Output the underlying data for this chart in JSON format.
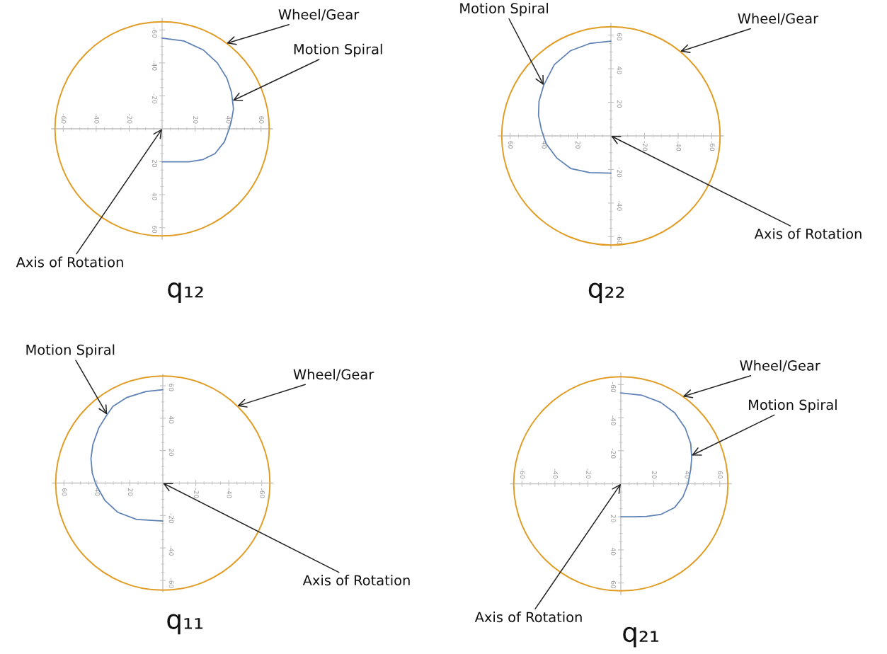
{
  "chart_data": [
    {
      "type": "line",
      "title": "q₁₂",
      "xlim": [
        -67,
        67
      ],
      "ylim": [
        67,
        -67
      ],
      "xticks": [
        -60,
        {
          "value": -55,
          "label": null
        },
        {
          "value": -50,
          "label": null
        },
        {
          "value": -45,
          "label": null
        },
        -40,
        {
          "value": -35,
          "label": null
        },
        {
          "value": -30,
          "label": null
        },
        {
          "value": -25,
          "label": null
        },
        -20,
        {
          "value": -15,
          "label": null
        },
        {
          "value": -10,
          "label": null
        },
        {
          "value": -5,
          "label": null
        },
        {
          "value": 5,
          "label": null
        },
        {
          "value": 10,
          "label": null
        },
        {
          "value": 15,
          "label": null
        },
        20,
        {
          "value": 25,
          "label": null
        },
        {
          "value": 30,
          "label": null
        },
        {
          "value": 35,
          "label": null
        },
        40,
        {
          "value": 45,
          "label": null
        },
        {
          "value": 50,
          "label": null
        },
        {
          "value": 55,
          "label": null
        },
        60
      ],
      "yticks": [
        -60,
        {
          "value": -55,
          "label": null
        },
        {
          "value": -50,
          "label": null
        },
        {
          "value": -45,
          "label": null
        },
        -40,
        {
          "value": -35,
          "label": null
        },
        {
          "value": -30,
          "label": null
        },
        {
          "value": -25,
          "label": null
        },
        -20,
        {
          "value": -15,
          "label": null
        },
        {
          "value": -10,
          "label": null
        },
        {
          "value": -5,
          "label": null
        },
        {
          "value": 5,
          "label": null
        },
        {
          "value": 10,
          "label": null
        },
        {
          "value": 15,
          "label": null
        },
        20,
        {
          "value": 25,
          "label": null
        },
        {
          "value": 30,
          "label": null
        },
        {
          "value": 35,
          "label": null
        },
        40,
        {
          "value": 45,
          "label": null
        },
        {
          "value": 50,
          "label": null
        },
        {
          "value": 55,
          "label": null
        },
        60
      ],
      "series": [
        {
          "color": "#5e81b5",
          "x": [
            0,
            13.2,
            24.9,
            33.5,
            39.3,
            42.1,
            43.3,
            42.1,
            40.7,
            37.8,
            32.1,
            24.9,
            16.3,
            7.7,
            0
          ],
          "values": [
            -55,
            -53.3,
            -47.9,
            -40,
            -30.7,
            -22.1,
            -12.1,
            -5,
            0,
            7.9,
            15,
            18.6,
            20,
            20,
            20
          ]
        }
      ],
      "annotations": [
        "Wheel/Gear",
        {
          "text": "Motion Spiral",
          "x": 42.8,
          "y": -17.1
        },
        "Axis of Rotation"
      ]
    },
    {
      "type": "line",
      "title": "q₂₂",
      "xlim": [
        67,
        -67
      ],
      "ylim": [
        -67,
        67
      ],
      "xticks": [
        -60,
        {
          "value": -55,
          "label": null
        },
        {
          "value": -50,
          "label": null
        },
        {
          "value": -45,
          "label": null
        },
        -40,
        {
          "value": -35,
          "label": null
        },
        {
          "value": -30,
          "label": null
        },
        {
          "value": -25,
          "label": null
        },
        -20,
        {
          "value": -15,
          "label": null
        },
        {
          "value": -10,
          "label": null
        },
        {
          "value": -5,
          "label": null
        },
        {
          "value": 5,
          "label": null
        },
        {
          "value": 10,
          "label": null
        },
        {
          "value": 15,
          "label": null
        },
        20,
        {
          "value": 25,
          "label": null
        },
        {
          "value": 30,
          "label": null
        },
        {
          "value": 35,
          "label": null
        },
        40,
        {
          "value": 45,
          "label": null
        },
        {
          "value": 50,
          "label": null
        },
        {
          "value": 55,
          "label": null
        },
        60
      ],
      "yticks": [
        -60,
        {
          "value": -55,
          "label": null
        },
        {
          "value": -50,
          "label": null
        },
        {
          "value": -45,
          "label": null
        },
        -40,
        {
          "value": -35,
          "label": null
        },
        {
          "value": -30,
          "label": null
        },
        {
          "value": -25,
          "label": null
        },
        -20,
        {
          "value": -15,
          "label": null
        },
        {
          "value": -10,
          "label": null
        },
        {
          "value": -5,
          "label": null
        },
        {
          "value": 5,
          "label": null
        },
        {
          "value": 10,
          "label": null
        },
        {
          "value": 15,
          "label": null
        },
        20,
        {
          "value": 25,
          "label": null
        },
        {
          "value": 30,
          "label": null
        },
        {
          "value": 35,
          "label": null
        },
        40,
        {
          "value": 45,
          "label": null
        },
        {
          "value": 50,
          "label": null
        },
        {
          "value": 55,
          "label": null
        },
        60
      ],
      "series": [
        {
          "color": "#5e81b5",
          "x": [
            0,
            12.6,
            23.9,
            33.7,
            40,
            42.8,
            43.1,
            41.4,
            38.6,
            32.3,
            23.9,
            12.6,
            0
          ],
          "values": [
            56.4,
            55,
            50.8,
            42.4,
            30.2,
            20.6,
            12.2,
            3.8,
            -4.6,
            -13.1,
            -19.4,
            -21.9,
            -22.2
          ]
        }
      ],
      "annotations": [
        {
          "text": "Motion Spiral",
          "x": 40,
          "y": 30.2
        },
        "Wheel/Gear",
        "Axis of Rotation"
      ]
    },
    {
      "type": "line",
      "title": "q₁₁",
      "xlim": [
        67,
        -67
      ],
      "ylim": [
        -67,
        67
      ],
      "xticks": [
        -60,
        {
          "value": -55,
          "label": null
        },
        {
          "value": -50,
          "label": null
        },
        {
          "value": -45,
          "label": null
        },
        -40,
        {
          "value": -35,
          "label": null
        },
        {
          "value": -30,
          "label": null
        },
        {
          "value": -25,
          "label": null
        },
        -20,
        {
          "value": -15,
          "label": null
        },
        {
          "value": -10,
          "label": null
        },
        {
          "value": -5,
          "label": null
        },
        {
          "value": 5,
          "label": null
        },
        {
          "value": 10,
          "label": null
        },
        {
          "value": 15,
          "label": null
        },
        20,
        {
          "value": 25,
          "label": null
        },
        {
          "value": 30,
          "label": null
        },
        {
          "value": 35,
          "label": null
        },
        40,
        {
          "value": 45,
          "label": null
        },
        {
          "value": 50,
          "label": null
        },
        {
          "value": 55,
          "label": null
        },
        60
      ],
      "yticks": [
        -60,
        {
          "value": -55,
          "label": null
        },
        {
          "value": -50,
          "label": null
        },
        {
          "value": -45,
          "label": null
        },
        -40,
        {
          "value": -35,
          "label": null
        },
        {
          "value": -30,
          "label": null
        },
        {
          "value": -25,
          "label": null
        },
        -20,
        {
          "value": -15,
          "label": null
        },
        {
          "value": -10,
          "label": null
        },
        {
          "value": -5,
          "label": null
        },
        {
          "value": 5,
          "label": null
        },
        {
          "value": 10,
          "label": null
        },
        {
          "value": 15,
          "label": null
        },
        20,
        {
          "value": 25,
          "label": null
        },
        {
          "value": 30,
          "label": null
        },
        {
          "value": 35,
          "label": null
        },
        40,
        {
          "value": 45,
          "label": null
        },
        {
          "value": 50,
          "label": null
        },
        {
          "value": 55,
          "label": null
        },
        60
      ],
      "series": [
        {
          "color": "#5e81b5",
          "x": [
            0,
            10.2,
            21.6,
            30.2,
            33.8,
            38.8,
            42.4,
            43.6,
            42.8,
            40.5,
            35.2,
            27.4,
            15.9,
            0
          ],
          "values": [
            57.6,
            56.5,
            52.9,
            47.4,
            42.2,
            34.1,
            23.9,
            15.1,
            6.2,
            -1.1,
            -10.6,
            -18,
            -22.4,
            -23.4
          ]
        }
      ],
      "annotations": [
        {
          "text": "Motion Spiral",
          "x": 33.8,
          "y": 42.2
        },
        "Wheel/Gear",
        "Axis of Rotation"
      ]
    },
    {
      "type": "line",
      "title": "q₂₁",
      "xlim": [
        -67,
        67
      ],
      "ylim": [
        67,
        -67
      ],
      "xticks": [
        -60,
        {
          "value": -55,
          "label": null
        },
        {
          "value": -50,
          "label": null
        },
        {
          "value": -45,
          "label": null
        },
        -40,
        {
          "value": -35,
          "label": null
        },
        {
          "value": -30,
          "label": null
        },
        {
          "value": -25,
          "label": null
        },
        -20,
        {
          "value": -15,
          "label": null
        },
        {
          "value": -10,
          "label": null
        },
        {
          "value": -5,
          "label": null
        },
        {
          "value": 5,
          "label": null
        },
        {
          "value": 10,
          "label": null
        },
        {
          "value": 15,
          "label": null
        },
        20,
        {
          "value": 25,
          "label": null
        },
        {
          "value": 30,
          "label": null
        },
        {
          "value": 35,
          "label": null
        },
        40,
        {
          "value": 45,
          "label": null
        },
        {
          "value": 50,
          "label": null
        },
        {
          "value": 55,
          "label": null
        },
        60
      ],
      "yticks": [
        -60,
        {
          "value": -55,
          "label": null
        },
        {
          "value": -50,
          "label": null
        },
        {
          "value": -45,
          "label": null
        },
        -40,
        {
          "value": -35,
          "label": null
        },
        {
          "value": -30,
          "label": null
        },
        {
          "value": -25,
          "label": null
        },
        -20,
        {
          "value": -15,
          "label": null
        },
        {
          "value": -10,
          "label": null
        },
        {
          "value": -5,
          "label": null
        },
        {
          "value": 5,
          "label": null
        },
        {
          "value": 10,
          "label": null
        },
        {
          "value": 15,
          "label": null
        },
        20,
        {
          "value": 25,
          "label": null
        },
        {
          "value": 30,
          "label": null
        },
        {
          "value": 35,
          "label": null
        },
        40,
        {
          "value": 45,
          "label": null
        },
        {
          "value": 50,
          "label": null
        },
        {
          "value": 55,
          "label": null
        },
        60
      ],
      "series": [
        {
          "color": "#5e81b5",
          "x": [
            0,
            12.6,
            24.1,
            32.7,
            39.1,
            42.4,
            43,
            42.4,
            40.8,
            37.7,
            32.7,
            24.1,
            15.5,
            6.9,
            0
          ],
          "values": [
            -55,
            -53.6,
            -49.3,
            -42.9,
            -33.6,
            -24.3,
            -15.7,
            -8.6,
            0,
            7.9,
            14.3,
            18.6,
            19.7,
            20,
            20
          ]
        }
      ],
      "annotations": [
        "Wheel/Gear",
        {
          "text": "Motion Spiral",
          "x": 42.9,
          "y": -17.1
        },
        "Axis of Rotation"
      ]
    }
  ]
}
